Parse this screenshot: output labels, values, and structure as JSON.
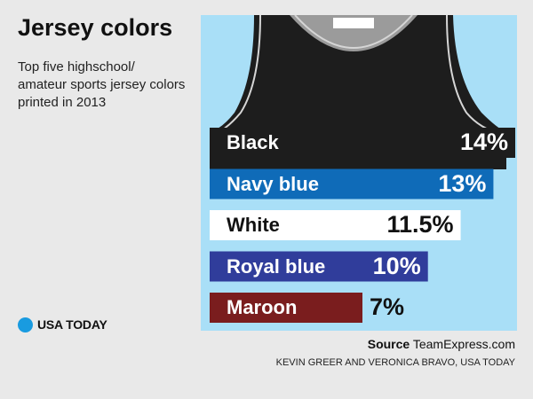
{
  "header": {
    "title": "Jersey colors",
    "subtitle": "Top five highschool/ amateur sports jersey colors printed in 2013"
  },
  "chart_data": {
    "type": "bar",
    "orientation": "horizontal",
    "categories": [
      "Black",
      "Navy blue",
      "White",
      "Royal blue",
      "Maroon"
    ],
    "values": [
      14,
      13,
      11.5,
      10,
      7
    ],
    "value_labels": [
      "14%",
      "13%",
      "11.5%",
      "10%",
      "7%"
    ],
    "unit": "%",
    "colors": [
      "#1d1d1d",
      "#0f6bb8",
      "#ffffff",
      "#303d9b",
      "#7a1d1e"
    ],
    "label_colors": [
      "#ffffff",
      "#ffffff",
      "#111111",
      "#ffffff",
      "#ffffff"
    ],
    "value_on_bar": [
      true,
      true,
      true,
      true,
      false
    ],
    "xlim": [
      0,
      14
    ],
    "background": "#a9dff7",
    "grid": false,
    "legend": "none"
  },
  "footer": {
    "logo_text": "USA TODAY",
    "source_prefix": "Source",
    "source_text": "TeamExpress.com",
    "credit": "KEVIN GREER AND VERONICA BRAVO, USA TODAY"
  }
}
